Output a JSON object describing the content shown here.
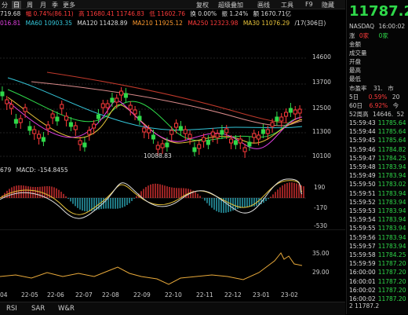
{
  "toolbar": {
    "items": [
      "分",
      "日",
      "周",
      "月",
      "季",
      "更多",
      "复权",
      "超级叠加",
      "画线",
      "工具",
      "F9",
      "隐藏"
    ],
    "active_index": 1
  },
  "ma_line": {
    "high_prev": "719.68",
    "change": "幅 0.74%(86.11)",
    "high": "高 11680.41",
    "high_val": "11746.83",
    "low": "低 11602.76",
    "turnover": "换 0.00%",
    "amplitude": "振 1.24%",
    "amount": "额 1670.71亿"
  },
  "ma_line2": {
    "ma5": "016.81",
    "ma10": "MA60 10903.35",
    "ma120": "MA120 11428.89",
    "ma210": "MA210 11925.12",
    "ma250": "MA250 12323.98",
    "ma30": "MA30 11076.29",
    "ratio": "/17(306日)"
  },
  "main_axis": {
    "ticks": [
      "14600",
      "13700",
      "12500",
      "11300",
      "10100"
    ],
    "low_label": "10088.83"
  },
  "macd_header": {
    "prefix": "679",
    "label": "MACD: -154.8455"
  },
  "macd_axis": {
    "ticks": [
      "190",
      "-170",
      "-530"
    ]
  },
  "rsi_axis": {
    "ticks": [
      "35.00",
      "29.00"
    ]
  },
  "x_axis": {
    "labels": [
      "04",
      "22-05",
      "22-06",
      "22-07",
      "22-08",
      "22-09",
      "22-10",
      "22-11",
      "22-12",
      "23-01",
      "23-02"
    ]
  },
  "bottom_tabs": [
    "RSI",
    "SAR",
    "W&R"
  ],
  "side": {
    "price": "11787.2",
    "exchange": "NASDAQ",
    "time": "16:00:02",
    "up": "涨",
    "up_count": "0家",
    "down": "0家",
    "stats": [
      "金额",
      "成交量",
      "开盘",
      "最高",
      "最低"
    ],
    "pe_label": "市盈率",
    "pe_val": "31.",
    "pe_extra": "市",
    "d5": "5日",
    "d5_val": "0.59%",
    "d5_extra": "20",
    "d60": "60日",
    "d60_val": "6.92%",
    "d60_extra": "今",
    "w52h": "52周高",
    "w52h_val": "14646.",
    "w52l": "52",
    "ticks": [
      {
        "t": "15:59:43",
        "p": "11785.64"
      },
      {
        "t": "15:59:44",
        "p": "11785.64"
      },
      {
        "t": "15:59:45",
        "p": "11785.64"
      },
      {
        "t": "15:59:46",
        "p": "11784.82"
      },
      {
        "t": "15:59:47",
        "p": "11784.25"
      },
      {
        "t": "15:59:48",
        "p": "11783.94"
      },
      {
        "t": "15:59:49",
        "p": "11783.94"
      },
      {
        "t": "15:59:50",
        "p": "11783.02"
      },
      {
        "t": "15:59:51",
        "p": "11783.94"
      },
      {
        "t": "15:59:52",
        "p": "11783.94"
      },
      {
        "t": "15:59:53",
        "p": "11783.94"
      },
      {
        "t": "15:59:54",
        "p": "11783.94"
      },
      {
        "t": "15:59:55",
        "p": "11783.94"
      },
      {
        "t": "15:59:56",
        "p": "11783.94"
      },
      {
        "t": "15:59:57",
        "p": "11783.94"
      },
      {
        "t": "15:59:58",
        "p": "11784.25"
      },
      {
        "t": "15:59:59",
        "p": "11787.20"
      },
      {
        "t": "16:00:00",
        "p": "11787.20"
      },
      {
        "t": "16:00:01",
        "p": "11787.20"
      },
      {
        "t": "16:00:02",
        "p": "11787.20"
      },
      {
        "t": "16:00:02",
        "p": "11787.20"
      }
    ],
    "last_row": "2 11787.2"
  },
  "colors": {
    "up": "#ff3b3b",
    "down": "#2fd94a",
    "ma_yellow": "#e8c33a",
    "ma_magenta": "#e040e0",
    "ma_cyan": "#34c6d9"
  }
}
